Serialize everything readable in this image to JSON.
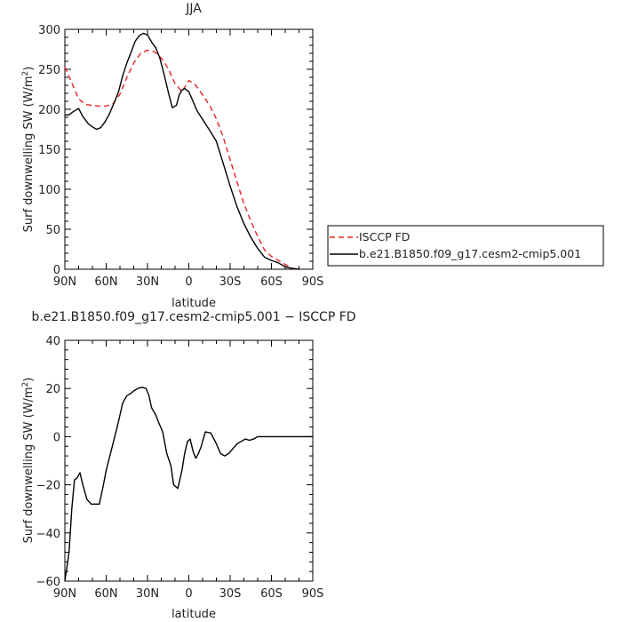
{
  "chart_data": [
    {
      "type": "line",
      "title": "JJA",
      "xlabel": "latitude",
      "ylabel": "Surf downwelling SW (W/m²)",
      "ylabel_base": "Surf downwelling SW (W/m",
      "ylabel_sup": "2",
      "ylabel_end": ")",
      "xlim": [
        90,
        -90
      ],
      "ylim": [
        0,
        300
      ],
      "xticks": [
        90,
        60,
        30,
        0,
        -30,
        -60,
        -90
      ],
      "xtick_labels": [
        "90N",
        "60N",
        "30N",
        "0",
        "30S",
        "60S",
        "90S"
      ],
      "yticks": [
        0,
        50,
        100,
        150,
        200,
        250,
        300
      ],
      "ytick_labels": [
        "0",
        "50",
        "100",
        "150",
        "200",
        "250",
        "300"
      ],
      "grid": false,
      "legend": "right",
      "series": [
        {
          "name": "ISCCP FD",
          "color": "#e8231f",
          "dash": true,
          "x": [
            90,
            85,
            80,
            75,
            70,
            65,
            60,
            55,
            50,
            45,
            40,
            35,
            30,
            25,
            20,
            15,
            10,
            5,
            0,
            -5,
            -10,
            -15,
            -20,
            -25,
            -30,
            -35,
            -40,
            -45,
            -50,
            -55,
            -60,
            -65,
            -70,
            -75,
            -80
          ],
          "y": [
            253,
            233,
            213,
            206,
            205,
            204,
            204,
            207,
            219,
            240,
            258,
            270,
            274,
            272,
            264,
            251,
            232,
            222,
            236,
            230,
            218,
            205,
            188,
            165,
            137,
            109,
            82,
            60,
            41,
            24,
            16,
            11,
            6,
            1,
            0
          ]
        },
        {
          "name": "b.e21.B1850.f09_g17.cesm2-cmip5.001",
          "color": "#000000",
          "dash": false,
          "x": [
            90,
            87,
            84,
            80,
            77,
            73,
            70,
            67,
            64,
            61,
            58,
            55,
            51,
            48,
            45,
            42,
            39,
            36,
            33,
            30,
            27,
            24,
            21,
            18,
            15,
            12,
            9,
            7,
            5,
            3,
            0,
            -3,
            -6,
            -9,
            -12,
            -15,
            -20,
            -25,
            -30,
            -35,
            -40,
            -45,
            -50,
            -55,
            -60,
            -65,
            -70,
            -75,
            -80
          ],
          "y": [
            193,
            193,
            197,
            201,
            191,
            182,
            178,
            175,
            177,
            184,
            193,
            205,
            222,
            242,
            258,
            271,
            285,
            292,
            295,
            293,
            284,
            277,
            264,
            244,
            222,
            202,
            205,
            218,
            224,
            226,
            222,
            210,
            198,
            190,
            182,
            174,
            160,
            132,
            104,
            78,
            57,
            40,
            26,
            15,
            11,
            8,
            3,
            1,
            0
          ]
        }
      ]
    },
    {
      "type": "line",
      "title": "b.e21.B1850.f09_g17.cesm2-cmip5.001 − ISCCP FD",
      "xlabel": "latitude",
      "ylabel": "Surf downwelling SW (W/m²)",
      "ylabel_base": "Surf downwelling SW (W/m",
      "ylabel_sup": "2",
      "ylabel_end": ")",
      "xlim": [
        90,
        -90
      ],
      "ylim": [
        -60,
        40
      ],
      "xticks": [
        90,
        60,
        30,
        0,
        -30,
        -60,
        -90
      ],
      "xtick_labels": [
        "90N",
        "60N",
        "30N",
        "0",
        "30S",
        "60S",
        "90S"
      ],
      "yticks": [
        -60,
        -40,
        -20,
        0,
        20,
        40
      ],
      "ytick_labels": [
        "−60",
        "−40",
        "−20",
        "0",
        "20",
        "40"
      ],
      "grid": false,
      "series": [
        {
          "color": "#000000",
          "dash": false,
          "x": [
            90,
            87,
            85,
            83,
            81,
            79,
            77,
            74,
            71,
            68,
            65,
            62,
            60,
            56,
            52,
            48,
            45,
            42,
            40,
            37,
            34,
            31,
            29,
            27,
            24,
            22,
            19,
            16,
            13,
            11,
            8,
            5,
            3,
            1,
            -1,
            -3,
            -5,
            -7,
            -9,
            -12,
            -16,
            -20,
            -23,
            -26,
            -29,
            -32,
            -35,
            -38,
            -41,
            -44,
            -47,
            -50,
            -53,
            -56,
            -59,
            -62,
            -65,
            -68,
            -71,
            -75,
            -80,
            -85,
            -90
          ],
          "y": [
            -60,
            -48,
            -30,
            -18,
            -17,
            -15,
            -20,
            -26,
            -28,
            -28,
            -28,
            -20,
            -14,
            -5,
            4,
            14,
            17,
            18,
            19,
            20,
            20.5,
            20,
            17,
            12,
            9,
            6,
            2,
            -7,
            -12,
            -20,
            -21.5,
            -14,
            -7,
            -2,
            -1,
            -6,
            -9,
            -7,
            -4,
            2,
            1.5,
            -3,
            -7,
            -8,
            -7,
            -5,
            -3,
            -2,
            -1,
            -1.5,
            -1,
            0,
            0,
            0,
            0,
            0,
            0,
            0,
            0,
            0,
            0,
            0,
            0
          ]
        }
      ]
    }
  ]
}
